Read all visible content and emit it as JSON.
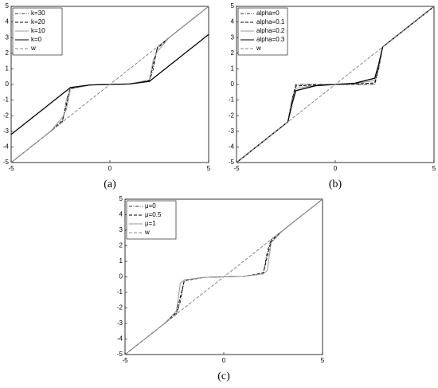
{
  "chart_data": [
    {
      "type": "line",
      "caption": "(a)",
      "x": [
        -5,
        -4,
        -3,
        -2.4,
        -2.2,
        -2,
        -1,
        0,
        1,
        2,
        2.2,
        2.4,
        3,
        4,
        5
      ],
      "xlim": [
        -5,
        5
      ],
      "ylim": [
        -5,
        5
      ],
      "xticks": [
        -5,
        0,
        5
      ],
      "yticks": [
        -5,
        -4,
        -3,
        -2,
        -1,
        0,
        1,
        2,
        3,
        4,
        5
      ],
      "series": [
        {
          "name": "k=30",
          "color": "#333333",
          "style": "dashdot",
          "values": [
            -5,
            -4,
            -3,
            -2.4,
            -1.0,
            -0.2,
            -0.03,
            0,
            0.03,
            0.2,
            1.0,
            2.4,
            3,
            4,
            5
          ]
        },
        {
          "name": "k=20",
          "color": "#000000",
          "style": "dashed",
          "values": [
            -5,
            -4,
            -3,
            -2.3,
            -1.3,
            -0.25,
            -0.03,
            0,
            0.03,
            0.25,
            1.3,
            2.3,
            3,
            4,
            5
          ]
        },
        {
          "name": "k=10",
          "color": "#999999",
          "style": "solid",
          "values": [
            -5,
            -4,
            -3,
            -2.1,
            -1.6,
            -0.3,
            -0.03,
            0,
            0.03,
            0.3,
            1.6,
            2.1,
            3,
            4,
            5
          ]
        },
        {
          "name": "k=0",
          "color": "#000000",
          "style": "solid",
          "values": [
            -3.2,
            -2.2,
            -1.2,
            -0.6,
            -0.4,
            -0.2,
            -0.03,
            0,
            0.03,
            0.2,
            0.4,
            0.6,
            1.2,
            2.2,
            3.2
          ]
        },
        {
          "name": "w",
          "color": "#888888",
          "style": "dashed",
          "values": [
            -5,
            -4,
            -3,
            -2.4,
            -2.2,
            -2,
            -1,
            0,
            1,
            2,
            2.2,
            2.4,
            3,
            4,
            5
          ]
        }
      ]
    },
    {
      "type": "line",
      "caption": "(b)",
      "x": [
        -5,
        -4,
        -3,
        -2.4,
        -2.2,
        -2,
        -1,
        0,
        1,
        2,
        2.2,
        2.4,
        3,
        4,
        5
      ],
      "xlim": [
        -5,
        5
      ],
      "ylim": [
        -5,
        5
      ],
      "xticks": [
        -5,
        0,
        5
      ],
      "yticks": [
        -5,
        -4,
        -3,
        -2,
        -1,
        0,
        1,
        2,
        3,
        4,
        5
      ],
      "series": [
        {
          "name": "alpha=0",
          "color": "#333333",
          "style": "dashdot",
          "values": [
            -5,
            -4,
            -3,
            -2.4,
            -1.0,
            0,
            0,
            0,
            0,
            0,
            1.0,
            2.4,
            3,
            4,
            5
          ]
        },
        {
          "name": "alpha=0.1",
          "color": "#000000",
          "style": "dashed",
          "values": [
            -5,
            -4,
            -3,
            -2.4,
            -1.1,
            -0.1,
            -0.02,
            0,
            0.02,
            0.1,
            1.1,
            2.4,
            3,
            4,
            5
          ]
        },
        {
          "name": "alpha=0.2",
          "color": "#999999",
          "style": "solid",
          "values": [
            -5,
            -4,
            -3,
            -2.4,
            -1.2,
            -0.25,
            -0.05,
            0,
            0.05,
            0.25,
            1.2,
            2.4,
            3,
            4,
            5
          ]
        },
        {
          "name": "alpha=0.3",
          "color": "#000000",
          "style": "solid",
          "values": [
            -5,
            -4,
            -3,
            -2.4,
            -1.3,
            -0.4,
            -0.08,
            0,
            0.08,
            0.4,
            1.3,
            2.4,
            3,
            4,
            5
          ]
        },
        {
          "name": "w",
          "color": "#888888",
          "style": "dashed",
          "values": [
            -5,
            -4,
            -3,
            -2.4,
            -2.2,
            -2,
            -1,
            0,
            1,
            2,
            2.2,
            2.4,
            3,
            4,
            5
          ]
        }
      ]
    },
    {
      "type": "line",
      "caption": "(c)",
      "x": [
        -5,
        -4,
        -3,
        -2.4,
        -2.2,
        -2,
        -1,
        0,
        1,
        2,
        2.2,
        2.4,
        3,
        4,
        5
      ],
      "xlim": [
        -5,
        5
      ],
      "ylim": [
        -5,
        5
      ],
      "xticks": [
        -5,
        0,
        5
      ],
      "yticks": [
        -5,
        -4,
        -3,
        -2,
        -1,
        0,
        1,
        2,
        3,
        4,
        5
      ],
      "series": [
        {
          "name": "μ=0",
          "color": "#333333",
          "style": "dashdot",
          "values": [
            -5,
            -4,
            -3,
            -2.4,
            -1.6,
            -0.2,
            -0.03,
            0,
            0.03,
            0.2,
            1.6,
            2.4,
            3,
            4,
            5
          ]
        },
        {
          "name": "μ=0.5",
          "color": "#000000",
          "style": "dashed",
          "values": [
            -5,
            -4,
            -3,
            -2.3,
            -1.3,
            -0.25,
            -0.03,
            0,
            0.03,
            0.25,
            1.3,
            2.3,
            3,
            4,
            5
          ]
        },
        {
          "name": "μ=1",
          "color": "#999999",
          "style": "solid",
          "values": [
            -5,
            -4,
            -3,
            -2.2,
            -0.4,
            -0.2,
            -0.03,
            0,
            0.03,
            0.2,
            0.4,
            2.2,
            3,
            4,
            5
          ]
        },
        {
          "name": "w",
          "color": "#888888",
          "style": "dashed",
          "values": [
            -5,
            -4,
            -3,
            -2.4,
            -2.2,
            -2,
            -1,
            0,
            1,
            2,
            2.2,
            2.4,
            3,
            4,
            5
          ]
        }
      ]
    }
  ]
}
